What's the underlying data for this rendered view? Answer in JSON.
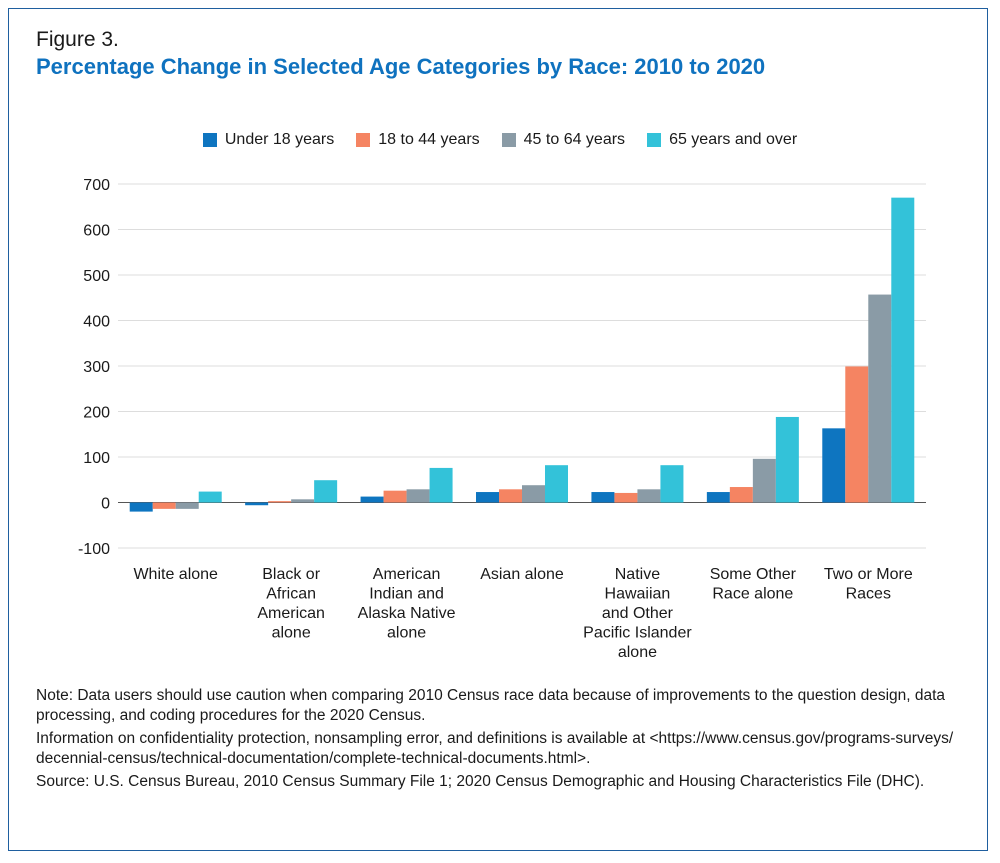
{
  "figure_label": "Figure 3.",
  "chart_data": {
    "type": "bar",
    "title": "Percentage Change in Selected Age Categories by Race: 2010 to 2020",
    "xlabel": "",
    "ylabel": "",
    "ylim": [
      -100,
      700
    ],
    "yticks": [
      700,
      600,
      500,
      400,
      300,
      200,
      100,
      0,
      -100
    ],
    "grid": true,
    "legend_position": "top",
    "categories": [
      [
        "White alone"
      ],
      [
        "Black or",
        "African",
        "American",
        "alone"
      ],
      [
        "American",
        "Indian and",
        "Alaska Native",
        "alone"
      ],
      [
        "Asian alone"
      ],
      [
        "Native",
        "Hawaiian",
        "and Other",
        "Pacific Islander",
        "alone"
      ],
      [
        "Some Other",
        "Race alone"
      ],
      [
        "Two or More",
        "Races"
      ]
    ],
    "series": [
      {
        "name": "Under 18 years",
        "color": "#0e75c0",
        "values": [
          -20,
          -6,
          13,
          23,
          23,
          23,
          163
        ]
      },
      {
        "name": "18 to 44 years",
        "color": "#f58462",
        "values": [
          -14,
          3,
          26,
          29,
          21,
          34,
          299
        ]
      },
      {
        "name": "45 to 64 years",
        "color": "#8a9ba6",
        "values": [
          -14,
          7,
          29,
          38,
          29,
          96,
          457
        ]
      },
      {
        "name": "65 years and over",
        "color": "#33c2d9",
        "values": [
          24,
          49,
          76,
          82,
          82,
          188,
          670
        ]
      }
    ]
  },
  "notes": [
    "Note: Data users should use caution when comparing 2010 Census race data because of improvements to the question design, data processing, and coding procedures for the 2020 Census.",
    "Information on confidentiality protection, nonsampling error, and definitions is available at <https://www.census.gov/programs-surveys/decennial-census/technical-documentation/complete-technical-documents.html>.",
    "Source: U.S. Census Bureau, 2010 Census Summary File 1; 2020 Census Demographic and Housing Characteristics File (DHC)."
  ]
}
